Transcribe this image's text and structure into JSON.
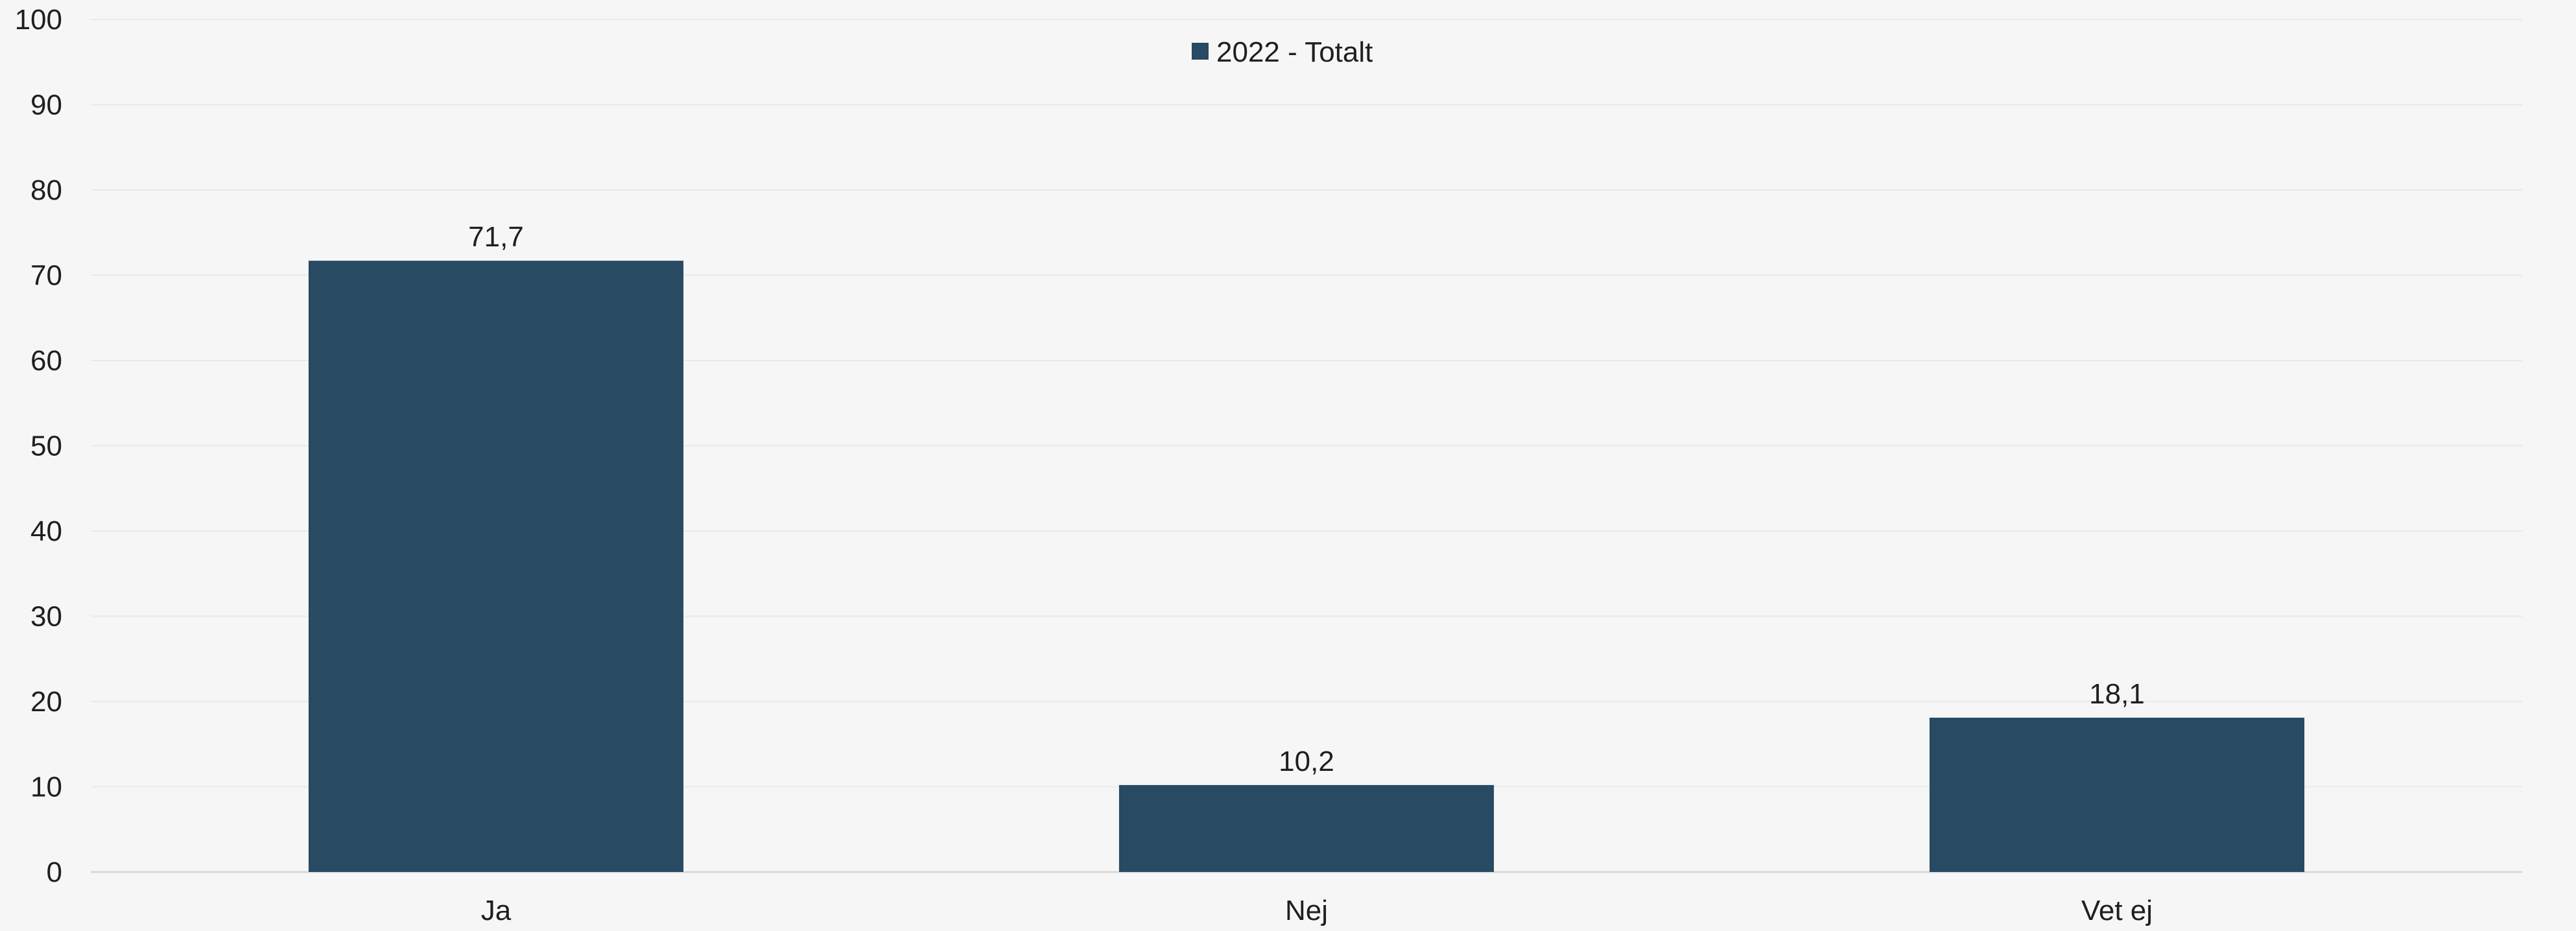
{
  "chart_data": {
    "type": "bar",
    "categories": [
      "Ja",
      "Nej",
      "Vet ej"
    ],
    "series": [
      {
        "name": "2022 - Totalt",
        "values": [
          71.7,
          10.2,
          18.1
        ],
        "data_labels": [
          "71,7",
          "10,2",
          "18,1"
        ],
        "color": "#284a63"
      }
    ],
    "ylim": [
      0,
      100
    ],
    "yticks": [
      0,
      10,
      20,
      30,
      40,
      50,
      60,
      70,
      80,
      90,
      100
    ],
    "grid": true,
    "legend_position": "top-center",
    "title": "",
    "xlabel": "",
    "ylabel": ""
  },
  "colors": {
    "background": "#f6f6f6",
    "gridline": "#e9e9e9",
    "axis": "#d9d9d9",
    "text": "#1f1f1f"
  }
}
